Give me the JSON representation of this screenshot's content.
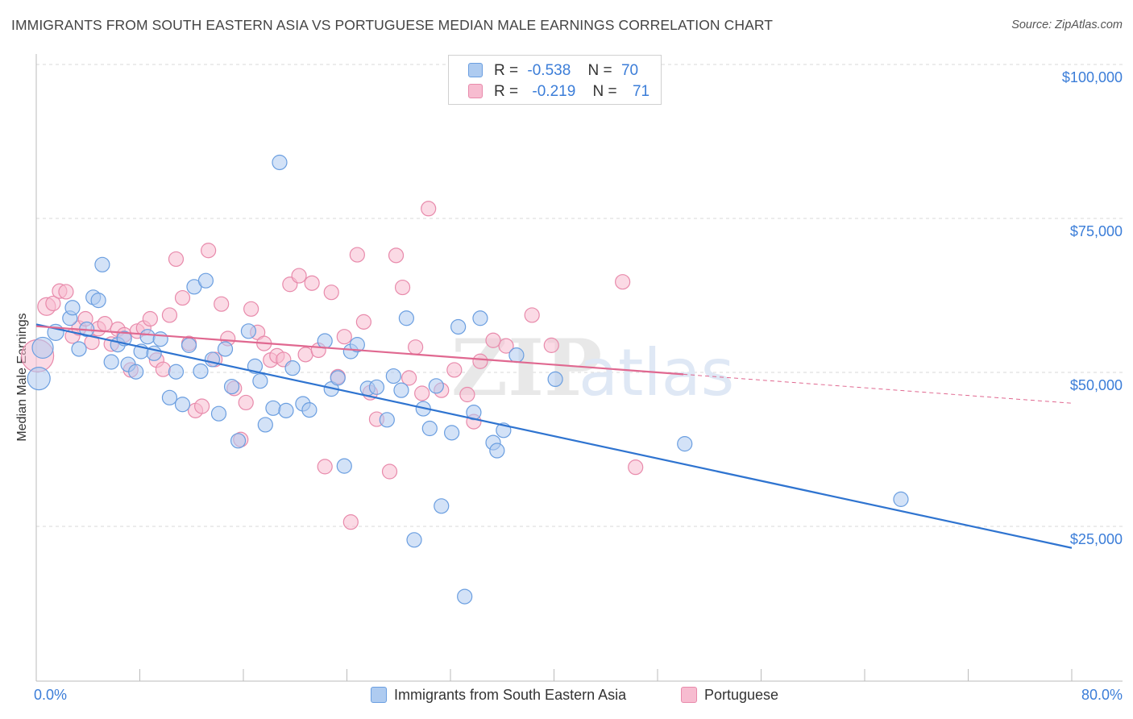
{
  "title": "IMMIGRANTS FROM SOUTH EASTERN ASIA VS PORTUGUESE MEDIAN MALE EARNINGS CORRELATION CHART",
  "source": "Source: ZipAtlas.com",
  "watermark": {
    "zip": "ZIP",
    "atlas": "atlas"
  },
  "legend": {
    "r_label": "R =",
    "n_label": "N =",
    "rows": [
      {
        "name": "Immigrants from South Eastern Asia",
        "r": "-0.538",
        "n": "70"
      },
      {
        "name": "Portuguese",
        "r": "-0.219",
        "n": "71"
      }
    ]
  },
  "colors": {
    "blue_fill": "#aecbf0",
    "blue_stroke": "#6a9ee0",
    "blue_line": "#2f74d0",
    "pink_fill": "#f7bcd0",
    "pink_stroke": "#e88aab",
    "pink_line": "#e06890",
    "tick_text": "#3b7dd8",
    "grid": "#d8d8d8"
  },
  "chart_data": {
    "type": "scatter",
    "title": "IMMIGRANTS FROM SOUTH EASTERN ASIA VS PORTUGUESE MEDIAN MALE EARNINGS CORRELATION CHART",
    "xlabel": "",
    "ylabel": "Median Male Earnings",
    "xlim": [
      0,
      80
    ],
    "ylim": [
      0,
      105000
    ],
    "x_tick_labels": [
      "0.0%",
      "80.0%"
    ],
    "y_ticks": [
      {
        "value": 25000,
        "label": "$25,000"
      },
      {
        "value": 50000,
        "label": "$50,000"
      },
      {
        "value": 75000,
        "label": "$75,000"
      },
      {
        "value": 100000,
        "label": "$100,000"
      }
    ],
    "series": [
      {
        "name": "Immigrants from South Eastern Asia",
        "color": "blue",
        "trend": {
          "x0": 0,
          "y0": 57800,
          "x1": 80,
          "y1": 21500,
          "solid_until": 80
        },
        "points": [
          [
            0.2,
            49000,
            14
          ],
          [
            0.5,
            54000,
            13
          ],
          [
            1.5,
            56500,
            10
          ],
          [
            2.6,
            58800,
            9
          ],
          [
            2.8,
            60500,
            9
          ],
          [
            3.3,
            53800,
            9
          ],
          [
            3.9,
            57000,
            9
          ],
          [
            4.4,
            62200,
            9
          ],
          [
            4.8,
            61700,
            9
          ],
          [
            5.1,
            67500,
            9
          ],
          [
            5.8,
            51700,
            9
          ],
          [
            6.3,
            54500,
            9
          ],
          [
            6.8,
            55500,
            9
          ],
          [
            7.1,
            51300,
            9
          ],
          [
            7.7,
            50100,
            9
          ],
          [
            8.1,
            53400,
            9
          ],
          [
            8.6,
            55800,
            9
          ],
          [
            9.1,
            53100,
            9
          ],
          [
            9.6,
            55400,
            9
          ],
          [
            10.3,
            45900,
            9
          ],
          [
            10.8,
            50100,
            9
          ],
          [
            11.3,
            44800,
            9
          ],
          [
            11.8,
            54400,
            9
          ],
          [
            12.2,
            63900,
            9
          ],
          [
            12.7,
            50200,
            9
          ],
          [
            13.1,
            64900,
            9
          ],
          [
            13.6,
            52100,
            9
          ],
          [
            14.1,
            43300,
            9
          ],
          [
            14.6,
            53800,
            9
          ],
          [
            15.1,
            47700,
            9
          ],
          [
            15.6,
            38900,
            9
          ],
          [
            16.4,
            56700,
            9
          ],
          [
            16.9,
            51000,
            9
          ],
          [
            17.3,
            48600,
            9
          ],
          [
            17.7,
            41500,
            9
          ],
          [
            18.3,
            44200,
            9
          ],
          [
            18.8,
            84100,
            9
          ],
          [
            19.3,
            43800,
            9
          ],
          [
            19.8,
            50700,
            9
          ],
          [
            20.6,
            44900,
            9
          ],
          [
            21.1,
            43900,
            9
          ],
          [
            22.3,
            55100,
            9
          ],
          [
            22.8,
            47300,
            9
          ],
          [
            23.3,
            49100,
            9
          ],
          [
            23.8,
            34800,
            9
          ],
          [
            24.3,
            53400,
            9
          ],
          [
            24.8,
            54500,
            9
          ],
          [
            25.6,
            47400,
            9
          ],
          [
            26.3,
            47600,
            9
          ],
          [
            27.1,
            42300,
            9
          ],
          [
            27.6,
            49400,
            9
          ],
          [
            28.2,
            47100,
            9
          ],
          [
            28.6,
            58800,
            9
          ],
          [
            29.2,
            22800,
            9
          ],
          [
            29.9,
            44100,
            9
          ],
          [
            30.4,
            40900,
            9
          ],
          [
            30.9,
            47800,
            9
          ],
          [
            31.3,
            28300,
            9
          ],
          [
            32.1,
            40200,
            9
          ],
          [
            32.6,
            57400,
            9
          ],
          [
            33.1,
            13600,
            9
          ],
          [
            33.8,
            43500,
            9
          ],
          [
            34.3,
            58800,
            9
          ],
          [
            35.3,
            38600,
            9
          ],
          [
            35.6,
            37300,
            9
          ],
          [
            36.1,
            40600,
            9
          ],
          [
            37.1,
            52800,
            9
          ],
          [
            40.1,
            48900,
            9
          ],
          [
            50.1,
            38400,
            9
          ],
          [
            66.8,
            29400,
            9
          ]
        ]
      },
      {
        "name": "Portuguese",
        "color": "pink",
        "trend": {
          "x0": 0,
          "y0": 57500,
          "x1": 80,
          "y1": 45000,
          "solid_until": 50
        },
        "points": [
          [
            0.1,
            52700,
            20
          ],
          [
            0.8,
            60700,
            11
          ],
          [
            1.3,
            61200,
            9
          ],
          [
            1.8,
            63200,
            9
          ],
          [
            2.3,
            63100,
            9
          ],
          [
            2.8,
            55900,
            9
          ],
          [
            3.3,
            57200,
            9
          ],
          [
            3.8,
            58700,
            9
          ],
          [
            4.3,
            54900,
            9
          ],
          [
            4.8,
            57100,
            9
          ],
          [
            5.3,
            57900,
            9
          ],
          [
            5.8,
            54600,
            9
          ],
          [
            6.3,
            57000,
            9
          ],
          [
            6.8,
            56100,
            9
          ],
          [
            7.3,
            50400,
            9
          ],
          [
            7.8,
            56700,
            9
          ],
          [
            8.3,
            57200,
            9
          ],
          [
            8.8,
            58700,
            9
          ],
          [
            9.3,
            52000,
            9
          ],
          [
            9.8,
            50500,
            9
          ],
          [
            10.3,
            59300,
            9
          ],
          [
            10.8,
            68400,
            9
          ],
          [
            11.3,
            62100,
            9
          ],
          [
            11.8,
            54700,
            9
          ],
          [
            12.3,
            43800,
            9
          ],
          [
            12.8,
            44500,
            9
          ],
          [
            13.3,
            69800,
            9
          ],
          [
            13.8,
            52100,
            9
          ],
          [
            14.3,
            61100,
            9
          ],
          [
            14.8,
            55500,
            9
          ],
          [
            15.3,
            47400,
            9
          ],
          [
            15.8,
            39100,
            9
          ],
          [
            16.2,
            45100,
            9
          ],
          [
            16.6,
            60300,
            9
          ],
          [
            17.1,
            56500,
            9
          ],
          [
            17.6,
            54700,
            9
          ],
          [
            18.1,
            52000,
            9
          ],
          [
            18.6,
            52700,
            9
          ],
          [
            19.1,
            52100,
            9
          ],
          [
            19.6,
            64300,
            9
          ],
          [
            20.3,
            65700,
            9
          ],
          [
            20.8,
            52900,
            9
          ],
          [
            21.3,
            64500,
            9
          ],
          [
            21.8,
            53600,
            9
          ],
          [
            22.3,
            34700,
            9
          ],
          [
            22.8,
            63000,
            9
          ],
          [
            23.3,
            49300,
            9
          ],
          [
            23.8,
            55800,
            9
          ],
          [
            24.3,
            25700,
            9
          ],
          [
            24.8,
            69100,
            9
          ],
          [
            25.3,
            58200,
            9
          ],
          [
            25.8,
            46700,
            9
          ],
          [
            26.3,
            42400,
            9
          ],
          [
            27.3,
            33900,
            9
          ],
          [
            27.8,
            69000,
            9
          ],
          [
            28.3,
            63800,
            9
          ],
          [
            28.8,
            49100,
            9
          ],
          [
            29.3,
            54100,
            9
          ],
          [
            29.8,
            46600,
            9
          ],
          [
            30.3,
            76600,
            9
          ],
          [
            31.3,
            47100,
            9
          ],
          [
            32.3,
            50400,
            9
          ],
          [
            33.3,
            46400,
            9
          ],
          [
            33.8,
            42000,
            9
          ],
          [
            34.3,
            51800,
            9
          ],
          [
            36.3,
            54300,
            9
          ],
          [
            38.3,
            59300,
            9
          ],
          [
            39.8,
            54400,
            9
          ],
          [
            45.3,
            64700,
            9
          ],
          [
            46.3,
            34600,
            9
          ],
          [
            35.3,
            55200,
            9
          ]
        ]
      }
    ]
  }
}
